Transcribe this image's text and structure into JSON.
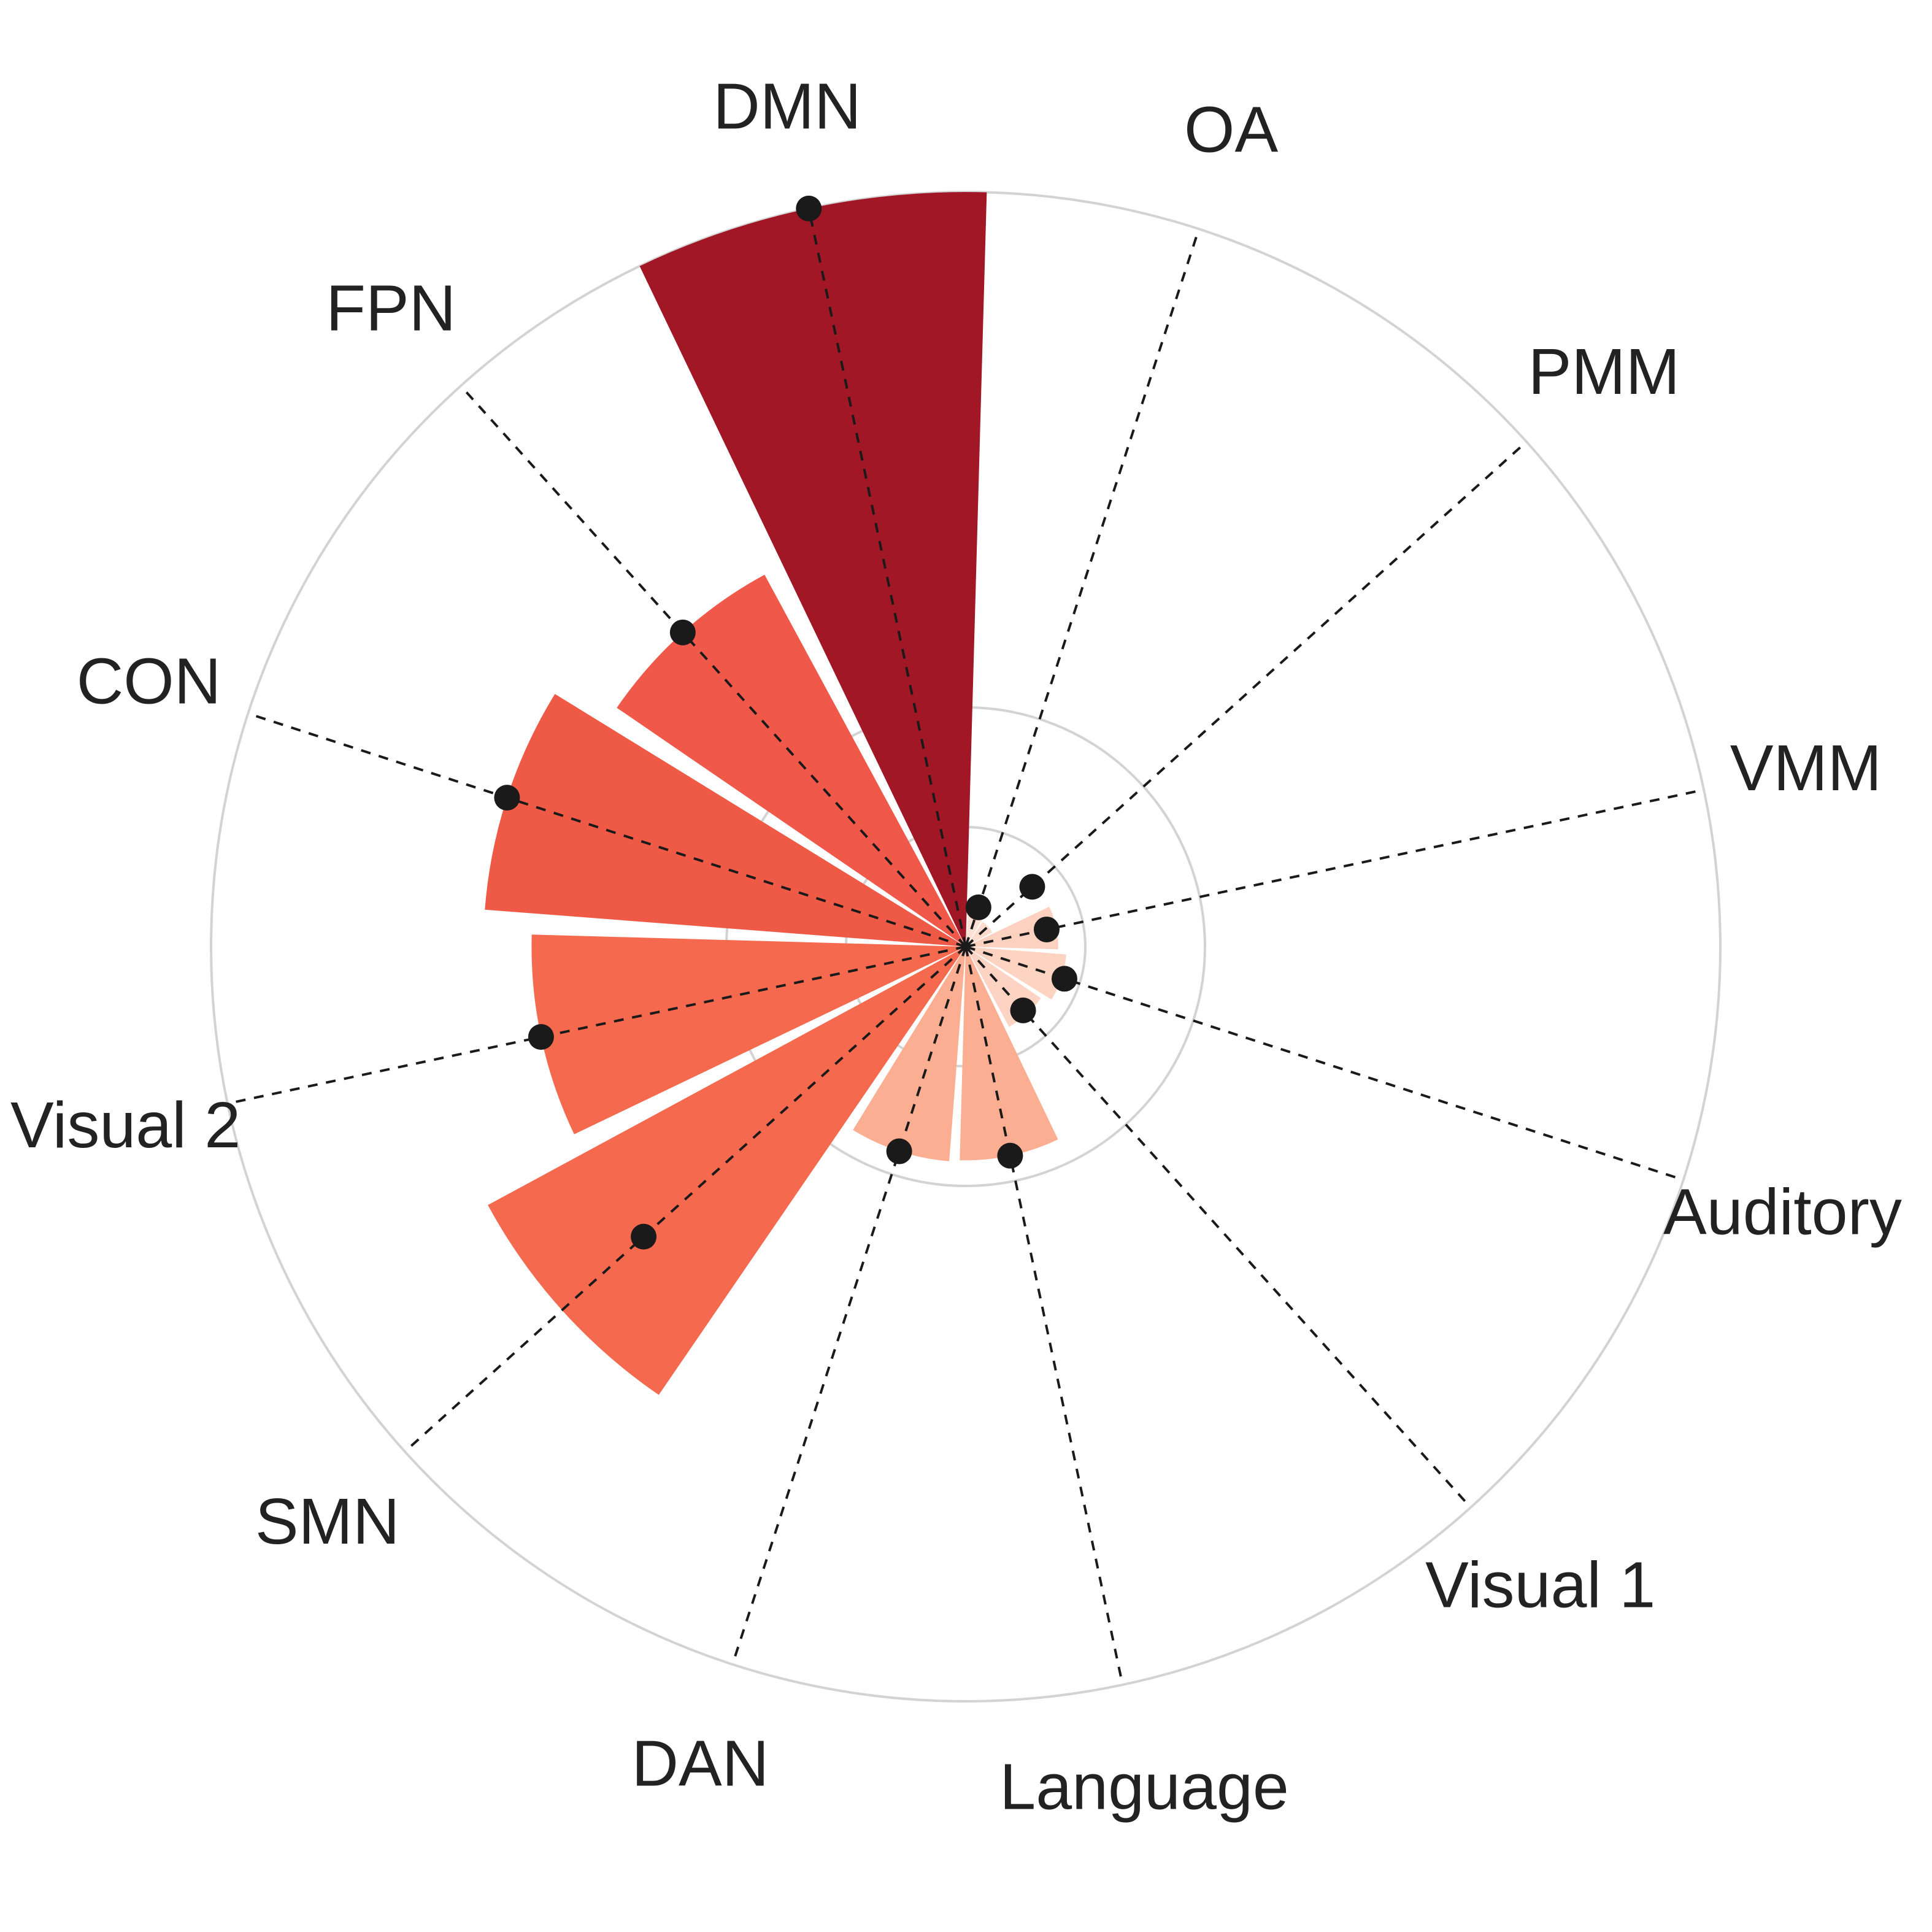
{
  "chart_data": {
    "type": "bar",
    "subtype": "polar",
    "title": "",
    "categories": [
      "DMN",
      "OA",
      "PMM",
      "VMM",
      "Auditory",
      "Visual 1",
      "Language",
      "DAN",
      "SMN",
      "Visual 2",
      "CON",
      "FPN"
    ],
    "values": [
      1.003,
      0.055,
      0.04,
      0.123,
      0.134,
      0.121,
      0.284,
      0.286,
      0.722,
      0.577,
      0.641,
      0.562
    ],
    "markers": [
      1.003,
      0.055,
      0.119,
      0.11,
      0.138,
      0.114,
      0.284,
      0.286,
      0.576,
      0.577,
      0.641,
      0.562
    ],
    "colors": [
      "#a11726",
      "#fee1d4",
      "#fedbcc",
      "#fcd1c0",
      "#fdd3c2",
      "#fdd4c3",
      "#fcae92",
      "#fcae92",
      "#f5694f",
      "#f5694f",
      "#ef5a47",
      "#f0584a"
    ],
    "rlim": [
      0,
      1.003
    ],
    "rgrid": [
      0.159,
      0.318,
      1.003
    ],
    "grid": true,
    "marker_color": "#1a1a1a",
    "grid_color": "#d3d3d3"
  }
}
